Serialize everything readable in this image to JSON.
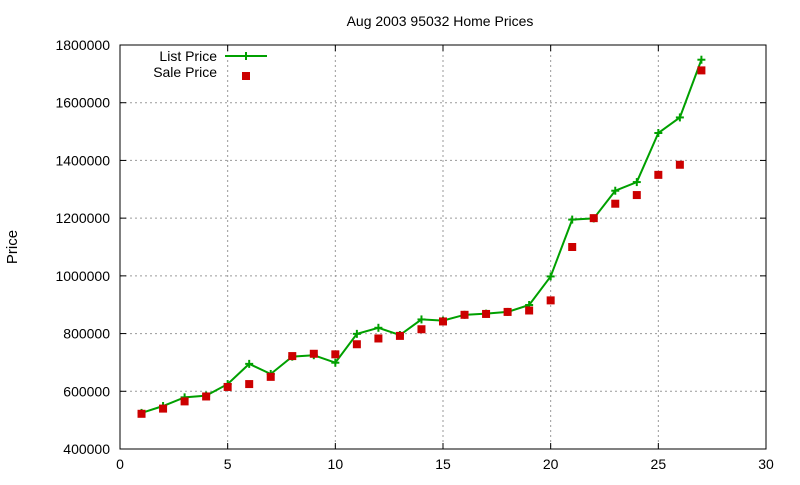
{
  "chart_data": {
    "type": "line",
    "title": "Aug 2003 95032 Home Prices",
    "xlabel": "",
    "ylabel": "Price",
    "xlim": [
      0,
      30
    ],
    "ylim": [
      400000,
      1800000
    ],
    "x_ticks": [
      0,
      5,
      10,
      15,
      20,
      25,
      30
    ],
    "y_ticks": [
      400000,
      600000,
      800000,
      1000000,
      1200000,
      1400000,
      1600000,
      1800000
    ],
    "grid": true,
    "legend_position": "top-left",
    "series": [
      {
        "name": "List Price",
        "style": "line-with-plus-markers",
        "color": "#00a000",
        "x": [
          1,
          2,
          3,
          4,
          5,
          6,
          7,
          8,
          9,
          10,
          11,
          12,
          13,
          14,
          15,
          16,
          17,
          18,
          19,
          20,
          21,
          22,
          23,
          24,
          25,
          26,
          27
        ],
        "values": [
          525000,
          549000,
          579000,
          585000,
          625000,
          695000,
          660000,
          720000,
          725000,
          699000,
          799000,
          820000,
          795000,
          849000,
          845000,
          865000,
          869000,
          875000,
          899000,
          998000,
          1195000,
          1199000,
          1295000,
          1325000,
          1495000,
          1549000,
          1749000
        ]
      },
      {
        "name": "Sale Price",
        "style": "square-markers",
        "color": "#cc0000",
        "x": [
          1,
          2,
          3,
          4,
          5,
          6,
          7,
          8,
          9,
          10,
          11,
          12,
          13,
          14,
          15,
          16,
          17,
          18,
          19,
          20,
          21,
          22,
          23,
          24,
          25,
          26,
          27
        ],
        "values": [
          522000,
          540000,
          565000,
          582000,
          615000,
          625000,
          650000,
          722000,
          730000,
          728000,
          763000,
          783000,
          792000,
          815000,
          842000,
          865000,
          868000,
          875000,
          880000,
          915000,
          1100000,
          1200000,
          1250000,
          1280000,
          1350000,
          1385000,
          1712000
        ]
      }
    ]
  }
}
